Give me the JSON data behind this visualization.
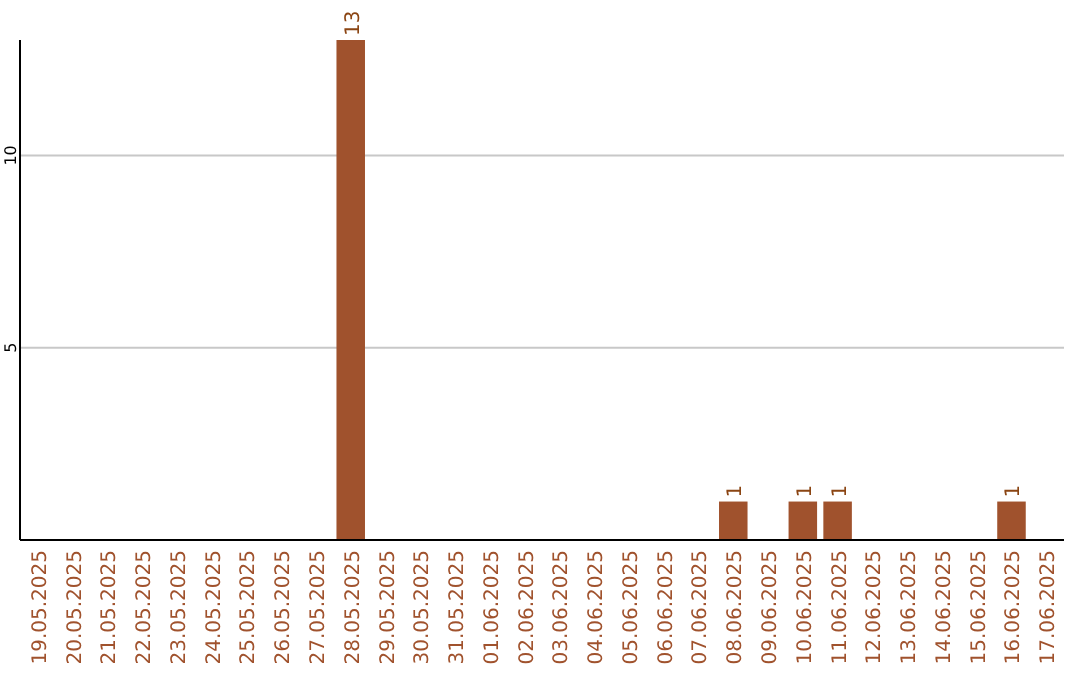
{
  "chart_data": {
    "type": "bar",
    "categories": [
      "19.05.2025",
      "20.05.2025",
      "21.05.2025",
      "22.05.2025",
      "23.05.2025",
      "24.05.2025",
      "25.05.2025",
      "26.05.2025",
      "27.05.2025",
      "28.05.2025",
      "29.05.2025",
      "30.05.2025",
      "31.05.2025",
      "01.06.2025",
      "02.06.2025",
      "03.06.2025",
      "04.06.2025",
      "05.06.2025",
      "06.06.2025",
      "07.06.2025",
      "08.06.2025",
      "09.06.2025",
      "10.06.2025",
      "11.06.2025",
      "12.06.2025",
      "13.06.2025",
      "14.06.2025",
      "15.06.2025",
      "16.06.2025",
      "17.06.2025"
    ],
    "values": [
      0,
      0,
      0,
      0,
      0,
      0,
      0,
      0,
      0,
      13,
      0,
      0,
      0,
      0,
      0,
      0,
      0,
      0,
      0,
      0,
      1,
      0,
      1,
      1,
      0,
      0,
      0,
      0,
      1,
      0
    ],
    "value_labels": [
      null,
      null,
      null,
      null,
      null,
      null,
      null,
      null,
      null,
      "13",
      null,
      null,
      null,
      null,
      null,
      null,
      null,
      null,
      null,
      null,
      "1",
      null,
      "1",
      "1",
      null,
      null,
      null,
      null,
      "1",
      null
    ],
    "color": "#a0522d",
    "ylim": [
      0,
      13
    ],
    "yticks": [
      5,
      10
    ],
    "grid": "y"
  }
}
